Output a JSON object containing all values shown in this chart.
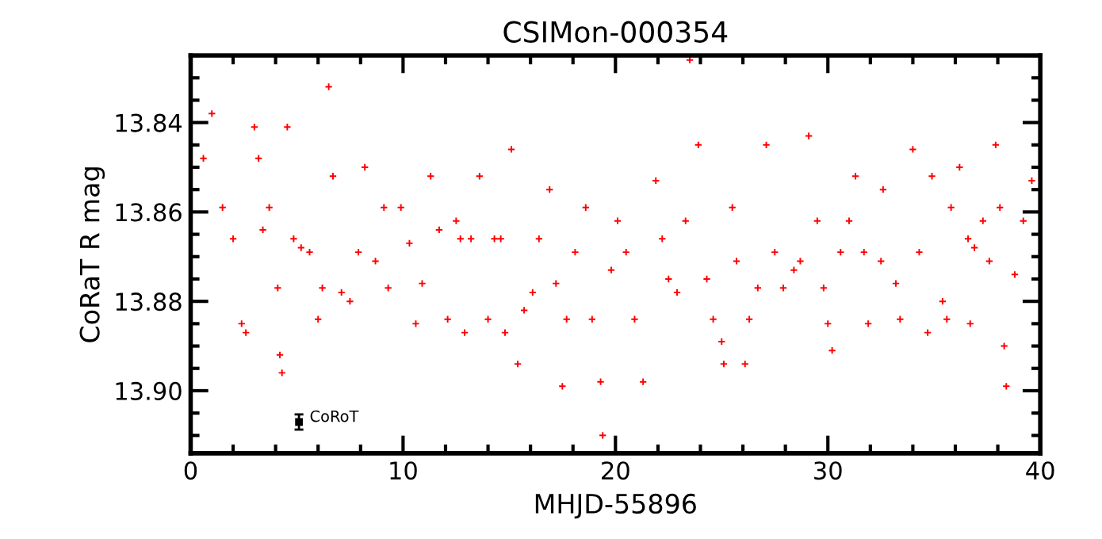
{
  "chart_data": {
    "type": "scatter",
    "title": "CSIMon-000354",
    "xlabel": "MHJD-55896",
    "ylabel": "CoRaT R mag",
    "xlim": [
      0,
      40
    ],
    "xticks": [
      0,
      10,
      20,
      30,
      40
    ],
    "ylim": [
      13.914,
      13.825
    ],
    "yticks": [
      13.84,
      13.86,
      13.88,
      {
        "value": 13.9,
        "label": "13.90"
      }
    ],
    "marker": "cross",
    "grid": false,
    "legend": false,
    "series": [
      {
        "color": "#ff0000",
        "x": [
          0.6,
          1.0,
          1.5,
          2.0,
          2.4,
          2.6,
          3.0,
          3.2,
          3.4,
          3.7,
          4.1,
          4.2,
          4.3,
          4.55,
          4.85,
          5.2,
          5.6,
          6.0,
          6.2,
          6.5,
          6.7,
          7.1,
          7.5,
          7.9,
          8.2,
          8.7,
          9.1,
          9.3,
          9.9,
          10.3,
          10.6,
          10.9,
          11.3,
          11.7,
          12.1,
          12.5,
          12.7,
          12.9,
          13.2,
          13.6,
          14.0,
          14.3,
          14.6,
          14.8,
          15.1,
          15.4,
          15.7,
          16.1,
          16.4,
          16.9,
          17.2,
          17.5,
          17.7,
          18.1,
          18.6,
          18.9,
          19.3,
          19.4,
          19.8,
          20.1,
          20.5,
          20.9,
          21.3,
          21.9,
          22.2,
          22.5,
          22.9,
          23.3,
          23.5,
          23.9,
          24.3,
          24.6,
          25.0,
          25.1,
          25.5,
          25.7,
          26.1,
          26.3,
          26.7,
          27.1,
          27.5,
          27.9,
          28.4,
          28.7,
          29.1,
          29.5,
          29.8,
          30.0,
          30.2,
          30.6,
          31.0,
          31.3,
          31.7,
          31.9,
          32.5,
          32.6,
          33.2,
          33.4,
          34.0,
          34.3,
          34.7,
          34.9,
          35.4,
          35.6,
          35.8,
          36.2,
          36.6,
          36.7,
          36.9,
          37.3,
          37.6,
          37.9,
          38.1,
          38.3,
          38.4,
          38.8,
          39.2,
          39.6
        ],
        "values": [
          13.848,
          13.838,
          13.859,
          13.866,
          13.885,
          13.887,
          13.841,
          13.848,
          13.864,
          13.859,
          13.877,
          13.892,
          13.896,
          13.841,
          13.866,
          13.868,
          13.869,
          13.884,
          13.877,
          13.832,
          13.852,
          13.878,
          13.88,
          13.869,
          13.85,
          13.871,
          13.859,
          13.877,
          13.859,
          13.867,
          13.885,
          13.876,
          13.852,
          13.864,
          13.884,
          13.862,
          13.866,
          13.887,
          13.866,
          13.852,
          13.884,
          13.866,
          13.866,
          13.887,
          13.846,
          13.894,
          13.882,
          13.878,
          13.866,
          13.855,
          13.876,
          13.899,
          13.884,
          13.869,
          13.859,
          13.884,
          13.898,
          13.91,
          13.873,
          13.862,
          13.869,
          13.884,
          13.898,
          13.853,
          13.866,
          13.875,
          13.878,
          13.862,
          13.826,
          13.845,
          13.875,
          13.884,
          13.889,
          13.894,
          13.859,
          13.871,
          13.894,
          13.884,
          13.877,
          13.845,
          13.869,
          13.877,
          13.873,
          13.871,
          13.843,
          13.862,
          13.877,
          13.885,
          13.891,
          13.869,
          13.862,
          13.852,
          13.869,
          13.885,
          13.871,
          13.855,
          13.876,
          13.884,
          13.846,
          13.869,
          13.887,
          13.852,
          13.88,
          13.884,
          13.859,
          13.85,
          13.866,
          13.885,
          13.868,
          13.862,
          13.871,
          13.845,
          13.859,
          13.89,
          13.899,
          13.874,
          13.862,
          13.853
        ]
      },
      {
        "color": "#000000",
        "marker": "square",
        "x": [
          5.1
        ],
        "values": [
          13.907
        ],
        "errors": [
          0.0017
        ]
      }
    ],
    "annotations": [
      {
        "text": "CoRoT",
        "x": 5.6,
        "y": 13.906
      }
    ]
  }
}
